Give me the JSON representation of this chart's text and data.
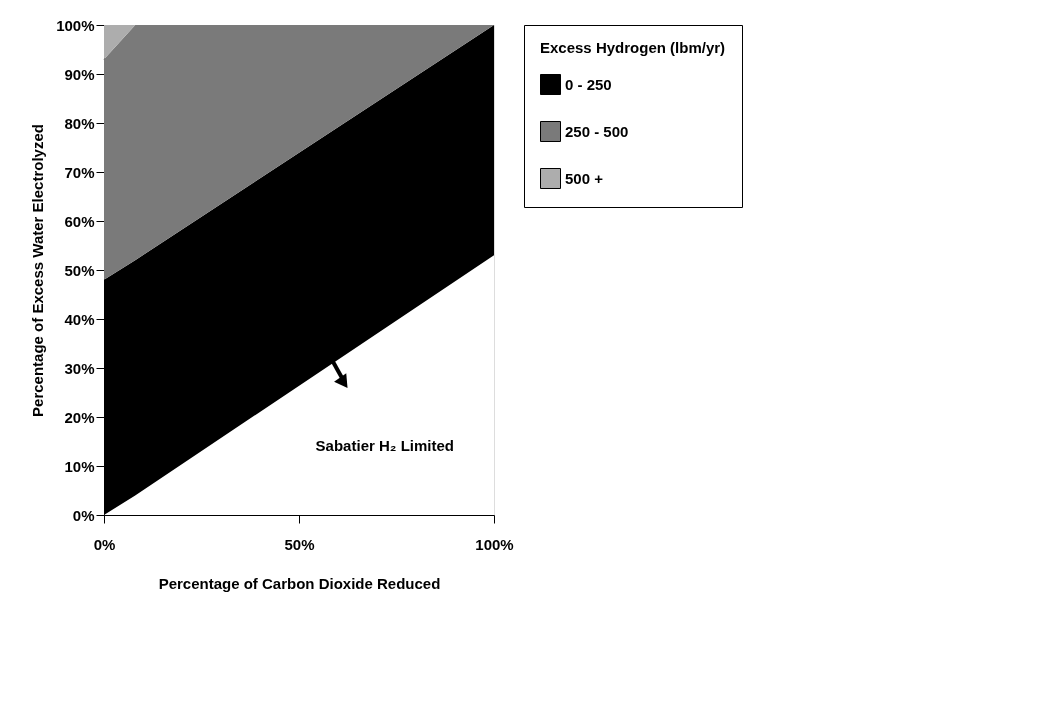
{
  "chart_data": {
    "type": "area",
    "stacked": true,
    "x": [
      0,
      8,
      100
    ],
    "series": [
      {
        "color": "#ffffff",
        "values": [
          0,
          4,
          53
        ]
      },
      {
        "name": "0 - 250",
        "color": "#000000",
        "values": [
          48,
          48,
          47
        ]
      },
      {
        "name": "250 - 500",
        "color": "#7a7a7a",
        "values": [
          45,
          48,
          0
        ]
      },
      {
        "name": "500 +",
        "color": "#adadad",
        "values": [
          7,
          0,
          0
        ]
      }
    ],
    "xlabel": "Percentage of Carbon Dioxide Reduced",
    "ylabel": "Percentage of Excess Water Electrolyzed",
    "legend_title": "Excess Hydrogen (lbm/yr)",
    "legend": "right",
    "xlim": [
      0,
      100
    ],
    "ylim": [
      0,
      100
    ],
    "xticks": [
      {
        "value": 0,
        "label": "0%"
      },
      {
        "value": 50,
        "label": "50%"
      },
      {
        "value": 100,
        "label": "100%"
      }
    ],
    "yticks": [
      {
        "value": 0,
        "label": "0%"
      },
      {
        "value": 10,
        "label": "10%"
      },
      {
        "value": 20,
        "label": "20%"
      },
      {
        "value": 30,
        "label": "30%"
      },
      {
        "value": 40,
        "label": "40%"
      },
      {
        "value": 50,
        "label": "50%"
      },
      {
        "value": 60,
        "label": "60%"
      },
      {
        "value": 70,
        "label": "70%"
      },
      {
        "value": 80,
        "label": "80%"
      },
      {
        "value": 90,
        "label": "90%"
      },
      {
        "value": 100,
        "label": "100%"
      }
    ],
    "grid": false,
    "annotations": [
      "Sabatier H₂ Limited"
    ]
  }
}
